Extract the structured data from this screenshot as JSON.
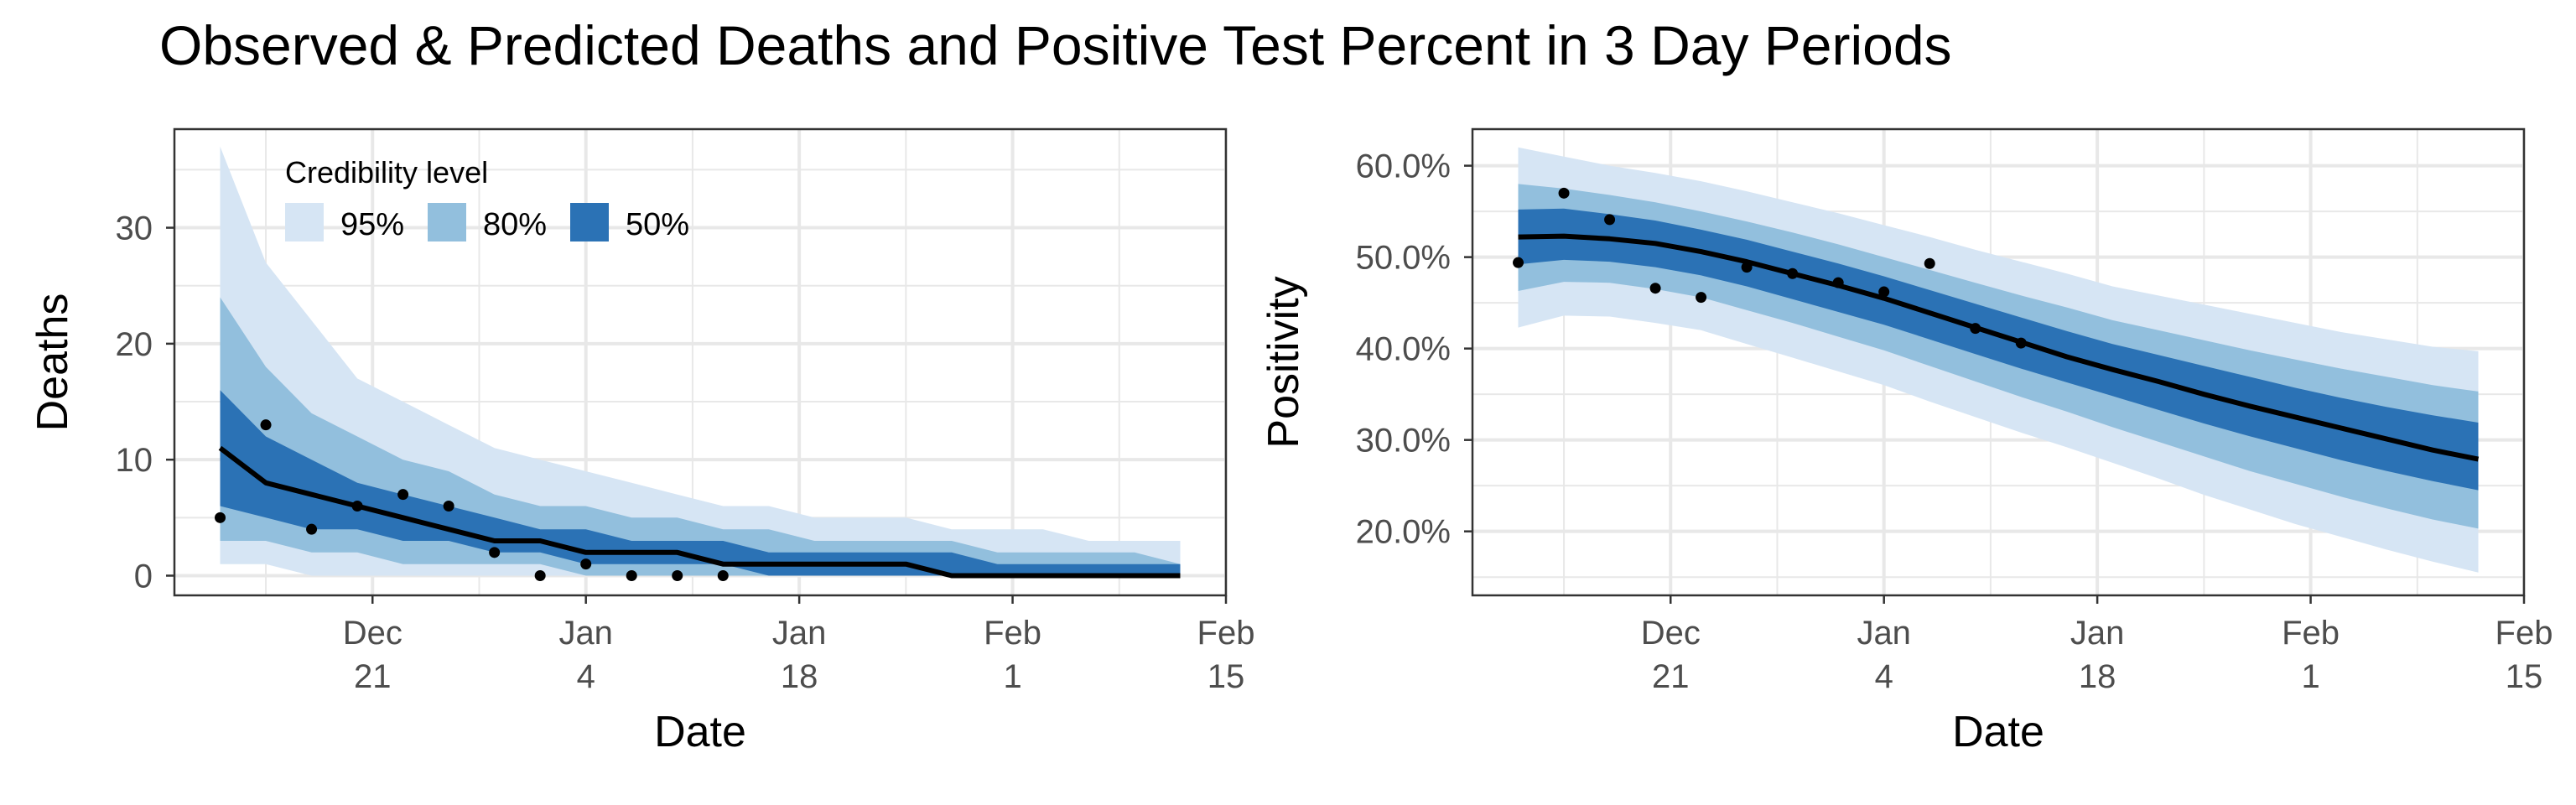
{
  "title": "Observed & Predicted Deaths and Positive Test Percent in 3 Day Periods",
  "colors": {
    "band95": "#d6e5f4",
    "band80": "#92bfdd",
    "band50": "#2b72b5",
    "median": "#000000",
    "points": "#000000",
    "grid": "#e8e8e8",
    "panel_border": "#333333"
  },
  "legend": {
    "title": "Credibility level",
    "items": [
      {
        "label": "95%",
        "color": "#d6e5f4"
      },
      {
        "label": "80%",
        "color": "#92bfdd"
      },
      {
        "label": "50%",
        "color": "#2b72b5"
      }
    ]
  },
  "chart_data": [
    {
      "type": "line",
      "id": "deaths",
      "xlabel": "Date",
      "ylabel": "Deaths",
      "x_ticks": [
        {
          "date": "2020-12-21",
          "line1": "Dec",
          "line2": "21"
        },
        {
          "date": "2021-01-04",
          "line1": "Jan",
          "line2": "4"
        },
        {
          "date": "2021-01-18",
          "line1": "Jan",
          "line2": "18"
        },
        {
          "date": "2021-02-01",
          "line1": "Feb",
          "line2": "1"
        },
        {
          "date": "2021-02-15",
          "line1": "Feb",
          "line2": "15"
        }
      ],
      "xlim": [
        "2020-12-08",
        "2021-02-15"
      ],
      "ylim": [
        -1.7,
        38.5
      ],
      "y_ticks": [
        0,
        10,
        20,
        30
      ],
      "y_tick_labels": [
        "0",
        "10",
        "20",
        "30"
      ],
      "grid": true,
      "legend_position": "top-left",
      "series": [
        {
          "role": "bands",
          "x": [
            "2020-12-11",
            "2020-12-14",
            "2020-12-17",
            "2020-12-20",
            "2020-12-23",
            "2020-12-26",
            "2020-12-29",
            "2021-01-01",
            "2021-01-04",
            "2021-01-07",
            "2021-01-10",
            "2021-01-13",
            "2021-01-16",
            "2021-01-19",
            "2021-01-22",
            "2021-01-25",
            "2021-01-28",
            "2021-01-31",
            "2021-02-03",
            "2021-02-06",
            "2021-02-09",
            "2021-02-12"
          ],
          "lower95": [
            1,
            1,
            0,
            0,
            0,
            0,
            0,
            0,
            0,
            0,
            0,
            0,
            0,
            0,
            0,
            0,
            0,
            0,
            0,
            0,
            0,
            0
          ],
          "upper95": [
            37,
            27,
            22,
            17,
            15,
            13,
            11,
            10,
            9,
            8,
            7,
            6,
            6,
            5,
            5,
            5,
            4,
            4,
            4,
            3,
            3,
            3
          ],
          "lower80": [
            3,
            3,
            2,
            2,
            1,
            1,
            1,
            1,
            0,
            0,
            0,
            0,
            0,
            0,
            0,
            0,
            0,
            0,
            0,
            0,
            0,
            0
          ],
          "upper80": [
            24,
            18,
            14,
            12,
            10,
            9,
            7,
            6,
            6,
            5,
            5,
            4,
            4,
            3,
            3,
            3,
            3,
            2,
            2,
            2,
            2,
            1
          ],
          "lower50": [
            6,
            5,
            4,
            4,
            3,
            3,
            2,
            2,
            1,
            1,
            1,
            1,
            0,
            0,
            0,
            0,
            0,
            0,
            0,
            0,
            0,
            0
          ],
          "upper50": [
            16,
            12,
            10,
            8,
            7,
            6,
            5,
            4,
            4,
            3,
            3,
            3,
            2,
            2,
            2,
            2,
            2,
            1,
            1,
            1,
            1,
            1
          ]
        },
        {
          "role": "median",
          "x": [
            "2020-12-11",
            "2020-12-14",
            "2020-12-17",
            "2020-12-20",
            "2020-12-23",
            "2020-12-26",
            "2020-12-29",
            "2021-01-01",
            "2021-01-04",
            "2021-01-07",
            "2021-01-10",
            "2021-01-13",
            "2021-01-16",
            "2021-01-19",
            "2021-01-22",
            "2021-01-25",
            "2021-01-28",
            "2021-01-31",
            "2021-02-03",
            "2021-02-06",
            "2021-02-09",
            "2021-02-12"
          ],
          "y": [
            11,
            8,
            7,
            6,
            5,
            4,
            3,
            3,
            2,
            2,
            2,
            1,
            1,
            1,
            1,
            1,
            0,
            0,
            0,
            0,
            0,
            0
          ]
        },
        {
          "role": "observed",
          "x": [
            "2020-12-11",
            "2020-12-14",
            "2020-12-17",
            "2020-12-20",
            "2020-12-23",
            "2020-12-26",
            "2020-12-29",
            "2021-01-01",
            "2021-01-04",
            "2021-01-07",
            "2021-01-10",
            "2021-01-13"
          ],
          "y": [
            5,
            13,
            4,
            6,
            7,
            6,
            2,
            0,
            1,
            0,
            0,
            0
          ]
        }
      ]
    },
    {
      "type": "line",
      "id": "positivity",
      "xlabel": "Date",
      "ylabel": "Positivity",
      "x_ticks": [
        {
          "date": "2020-12-21",
          "line1": "Dec",
          "line2": "21"
        },
        {
          "date": "2021-01-04",
          "line1": "Jan",
          "line2": "4"
        },
        {
          "date": "2021-01-18",
          "line1": "Jan",
          "line2": "18"
        },
        {
          "date": "2021-02-01",
          "line1": "Feb",
          "line2": "1"
        },
        {
          "date": "2021-02-15",
          "line1": "Feb",
          "line2": "15"
        }
      ],
      "xlim": [
        "2020-12-08",
        "2021-02-15"
      ],
      "ylim": [
        0.13,
        0.64
      ],
      "y_ticks": [
        0.2,
        0.3,
        0.4,
        0.5,
        0.6
      ],
      "y_tick_labels": [
        "20.0%",
        "30.0%",
        "40.0%",
        "50.0%",
        "60.0%"
      ],
      "grid": true,
      "series": [
        {
          "role": "bands",
          "x": [
            "2020-12-11",
            "2020-12-14",
            "2020-12-17",
            "2020-12-20",
            "2020-12-23",
            "2020-12-26",
            "2020-12-29",
            "2021-01-01",
            "2021-01-04",
            "2021-01-07",
            "2021-01-10",
            "2021-01-13",
            "2021-01-16",
            "2021-01-19",
            "2021-01-22",
            "2021-01-25",
            "2021-01-28",
            "2021-01-31",
            "2021-02-03",
            "2021-02-06",
            "2021-02-09",
            "2021-02-12"
          ],
          "lower95": [
            0.423,
            0.436,
            0.435,
            0.428,
            0.42,
            0.405,
            0.39,
            0.375,
            0.36,
            0.342,
            0.325,
            0.308,
            0.292,
            0.275,
            0.258,
            0.24,
            0.224,
            0.208,
            0.194,
            0.18,
            0.167,
            0.155
          ],
          "upper95": [
            0.62,
            0.61,
            0.6,
            0.592,
            0.583,
            0.572,
            0.56,
            0.548,
            0.535,
            0.522,
            0.508,
            0.495,
            0.482,
            0.468,
            0.458,
            0.448,
            0.438,
            0.428,
            0.418,
            0.41,
            0.402,
            0.397
          ],
          "lower80": [
            0.463,
            0.473,
            0.472,
            0.465,
            0.456,
            0.442,
            0.428,
            0.413,
            0.398,
            0.381,
            0.364,
            0.347,
            0.331,
            0.314,
            0.298,
            0.282,
            0.266,
            0.252,
            0.238,
            0.225,
            0.213,
            0.203
          ],
          "upper80": [
            0.58,
            0.575,
            0.568,
            0.56,
            0.55,
            0.539,
            0.527,
            0.514,
            0.5,
            0.486,
            0.472,
            0.458,
            0.445,
            0.431,
            0.42,
            0.409,
            0.398,
            0.388,
            0.378,
            0.369,
            0.36,
            0.353
          ],
          "lower50": [
            0.492,
            0.497,
            0.495,
            0.489,
            0.48,
            0.468,
            0.454,
            0.44,
            0.426,
            0.41,
            0.394,
            0.378,
            0.363,
            0.348,
            0.333,
            0.318,
            0.304,
            0.291,
            0.278,
            0.266,
            0.255,
            0.245
          ],
          "upper50": [
            0.552,
            0.553,
            0.547,
            0.54,
            0.53,
            0.519,
            0.506,
            0.493,
            0.479,
            0.464,
            0.449,
            0.434,
            0.419,
            0.405,
            0.393,
            0.381,
            0.369,
            0.357,
            0.346,
            0.336,
            0.327,
            0.319
          ]
        },
        {
          "role": "median",
          "x": [
            "2020-12-11",
            "2020-12-14",
            "2020-12-17",
            "2020-12-20",
            "2020-12-23",
            "2020-12-26",
            "2020-12-29",
            "2021-01-01",
            "2021-01-04",
            "2021-01-07",
            "2021-01-10",
            "2021-01-13",
            "2021-01-16",
            "2021-01-19",
            "2021-01-22",
            "2021-01-25",
            "2021-01-28",
            "2021-01-31",
            "2021-02-03",
            "2021-02-06",
            "2021-02-09",
            "2021-02-12"
          ],
          "y": [
            0.522,
            0.523,
            0.52,
            0.515,
            0.506,
            0.495,
            0.482,
            0.469,
            0.455,
            0.439,
            0.423,
            0.407,
            0.391,
            0.377,
            0.364,
            0.35,
            0.337,
            0.325,
            0.313,
            0.301,
            0.289,
            0.279
          ]
        },
        {
          "role": "observed",
          "x": [
            "2020-12-11",
            "2020-12-14",
            "2020-12-17",
            "2020-12-20",
            "2020-12-23",
            "2020-12-26",
            "2020-12-29",
            "2021-01-01",
            "2021-01-04",
            "2021-01-07",
            "2021-01-10",
            "2021-01-13"
          ],
          "y": [
            0.494,
            0.57,
            0.541,
            0.466,
            0.456,
            0.489,
            0.482,
            0.472,
            0.462,
            0.493,
            0.422,
            0.406
          ]
        }
      ]
    }
  ]
}
